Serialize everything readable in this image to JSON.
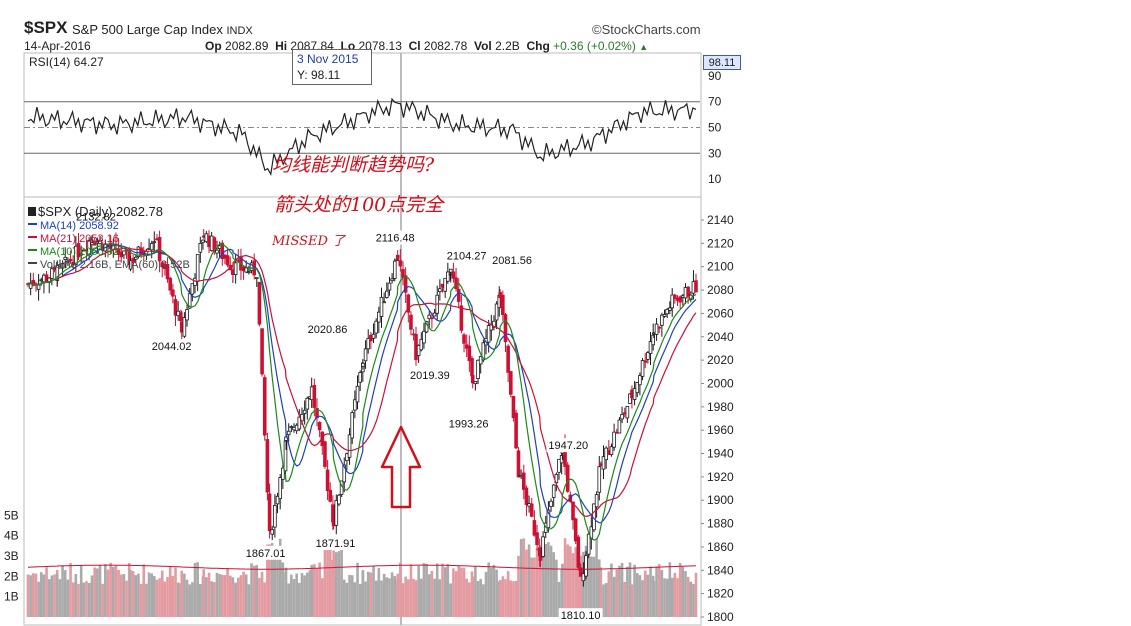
{
  "header": {
    "symbol": "$SPX",
    "description": "S&P 500 Large Cap Index",
    "exchange": "INDX",
    "brand": "©StockCharts.com",
    "date": "14-Apr-2016",
    "open_label": "Op",
    "open": "2082.89",
    "high_label": "Hi",
    "high": "2087.84",
    "low_label": "Lo",
    "low": "2078.13",
    "close_label": "Cl",
    "close": "2082.78",
    "volume_label": "Vol",
    "volume": "2.2B",
    "change_label": "Chg",
    "change": "+0.36 (+0.02%)"
  },
  "tooltip": {
    "date": "3 Nov 2015",
    "value": "Y: 98.11"
  },
  "rsi_badge": "98.11",
  "annotations": {
    "line1": "均线能判断趋势吗?",
    "line2": "箭头处的100点完全",
    "line3": "MISSED 了",
    "arrow_color": "#d0101a"
  },
  "colors": {
    "up": "#1a1a1a",
    "down": "#cc1133",
    "ma14": "#1f3fbf",
    "ma21": "#cc1133",
    "ma10": "#1a8a1a",
    "vol_up": "#aaaaaa",
    "vol_down": "#e39aa0",
    "ema": "#cc1133"
  },
  "chart_data": [
    {
      "type": "line",
      "title": "RSI(14) 64.27",
      "ylim": [
        0,
        100
      ],
      "y_ticks": [
        "90",
        "70",
        "50",
        "30",
        "10"
      ],
      "reference_lines": [
        70,
        50,
        30
      ],
      "series": [
        {
          "name": "RSI(14)",
          "x": [
            "2015-05",
            "2015-06",
            "2015-07",
            "2015-08",
            "2015-08-24",
            "2015-09",
            "2015-10",
            "2015-11",
            "2015-12",
            "2016-01",
            "2016-01-20",
            "2016-02",
            "2016-03",
            "2016-04"
          ],
          "values": [
            58,
            52,
            58,
            45,
            18,
            42,
            62,
            68,
            52,
            48,
            28,
            38,
            62,
            64
          ]
        }
      ]
    },
    {
      "type": "candlestick",
      "title": "$SPX (Daily) 2082.78",
      "legend": [
        "MA(14) 2058.92",
        "MA(21) 2053.16",
        "MA(10) 2060.92",
        "Volume 2.16B, EMA(60) 2.52B"
      ],
      "legend_placement": "top-left",
      "y_label_ticks": [
        "2140",
        "2120",
        "2100",
        "2080",
        "2060",
        "2040",
        "2020",
        "2000",
        "1980",
        "1960",
        "1940",
        "1920",
        "1900",
        "1880",
        "1860",
        "1840",
        "1820",
        "1800"
      ],
      "ylim": [
        1797,
        2148
      ],
      "volume_ticks": [
        "5B",
        "4B",
        "3B",
        "2B",
        "1B"
      ],
      "volume_ylim": [
        0,
        5.9
      ],
      "price_path": [
        {
          "t": "2015-04-15",
          "v": 2085
        },
        {
          "t": "2015-05-01",
          "v": 2095
        },
        {
          "t": "2015-05-20",
          "v": 2125
        },
        {
          "t": "2015-06-10",
          "v": 2105
        },
        {
          "t": "2015-06-23",
          "v": 2125
        },
        {
          "t": "2015-07-08",
          "v": 2046
        },
        {
          "t": "2015-07-20",
          "v": 2128
        },
        {
          "t": "2015-08-05",
          "v": 2100
        },
        {
          "t": "2015-08-18",
          "v": 2096
        },
        {
          "t": "2015-08-25",
          "v": 1868
        },
        {
          "t": "2015-09-03",
          "v": 1950
        },
        {
          "t": "2015-09-17",
          "v": 1995
        },
        {
          "t": "2015-09-29",
          "v": 1882
        },
        {
          "t": "2015-10-15",
          "v": 2020
        },
        {
          "t": "2015-11-03",
          "v": 2110
        },
        {
          "t": "2015-11-13",
          "v": 2025
        },
        {
          "t": "2015-12-02",
          "v": 2100
        },
        {
          "t": "2015-12-14",
          "v": 2000
        },
        {
          "t": "2015-12-29",
          "v": 2075
        },
        {
          "t": "2016-01-08",
          "v": 1925
        },
        {
          "t": "2016-01-20",
          "v": 1855
        },
        {
          "t": "2016-02-01",
          "v": 1945
        },
        {
          "t": "2016-02-11",
          "v": 1830
        },
        {
          "t": "2016-02-22",
          "v": 1930
        },
        {
          "t": "2016-03-10",
          "v": 1990
        },
        {
          "t": "2016-03-22",
          "v": 2045
        },
        {
          "t": "2016-04-01",
          "v": 2070
        },
        {
          "t": "2016-04-14",
          "v": 2083
        }
      ],
      "annotations": [
        {
          "label": "2132.82",
          "value": 2132.82,
          "t": "2015-05-20"
        },
        {
          "label": "2044.02",
          "value": 2044.02,
          "t": "2015-07-08"
        },
        {
          "label": "2020.86",
          "value": 2020.86,
          "t": "2015-09-17"
        },
        {
          "label": "1867.01",
          "value": 1867.01,
          "t": "2015-08-24"
        },
        {
          "label": "1871.91",
          "value": 1871.91,
          "t": "2015-09-29"
        },
        {
          "label": "2116.48",
          "value": 2116.48,
          "t": "2015-11-03"
        },
        {
          "label": "2019.39",
          "value": 2019.39,
          "t": "2015-11-13"
        },
        {
          "label": "2104.27",
          "value": 2104.27,
          "t": "2015-12-02"
        },
        {
          "label": "1993.26",
          "value": 1993.26,
          "t": "2015-12-14"
        },
        {
          "label": "2081.56",
          "value": 2081.56,
          "t": "2015-12-29"
        },
        {
          "label": "1947.20",
          "value": 1947.2,
          "t": "2016-02-01"
        },
        {
          "label": "1810.10",
          "value": 1810.1,
          "t": "2016-02-11"
        }
      ]
    }
  ]
}
